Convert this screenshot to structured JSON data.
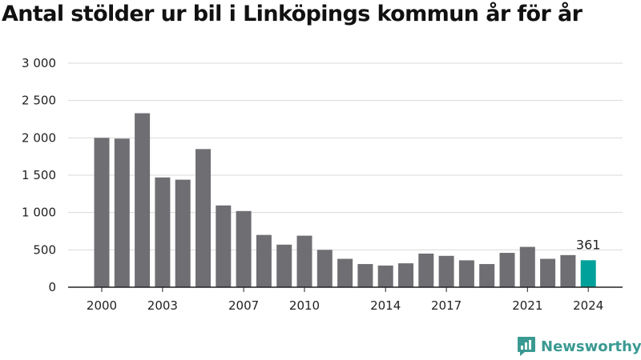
{
  "title": "Antal stölder ur bil i Linköpings kommun år för år",
  "brand": {
    "name": "Newsworthy",
    "icon": "newsworthy-logo-icon",
    "color": "#3a9a92"
  },
  "colors": {
    "bar": "#6f6e73",
    "highlight": "#00a19a",
    "grid": "#d9d9d9",
    "axis": "#222222"
  },
  "chart_data": {
    "type": "bar",
    "title": "Antal stölder ur bil i Linköpings kommun år för år",
    "xlabel": "",
    "ylabel": "",
    "categories": [
      2000,
      2001,
      2002,
      2003,
      2004,
      2005,
      2006,
      2007,
      2008,
      2009,
      2010,
      2011,
      2012,
      2013,
      2014,
      2015,
      2016,
      2017,
      2018,
      2019,
      2020,
      2021,
      2022,
      2023,
      2024
    ],
    "values": [
      2000,
      1990,
      2330,
      1470,
      1440,
      1850,
      1095,
      1020,
      700,
      570,
      690,
      500,
      380,
      310,
      290,
      320,
      450,
      420,
      360,
      310,
      460,
      540,
      380,
      430,
      361
    ],
    "highlight_index": 24,
    "x_tick_labels": [
      "2000",
      "2003",
      "2007",
      "2010",
      "2014",
      "2017",
      "2021",
      "2024"
    ],
    "y_ticks": [
      0,
      500,
      1000,
      1500,
      2000,
      2500,
      3000
    ],
    "y_tick_labels": [
      "0",
      "500",
      "1 000",
      "1 500",
      "2 000",
      "2 500",
      "3 000"
    ],
    "ylim": [
      0,
      3000
    ],
    "grid": true,
    "data_labels": [
      {
        "index": 24,
        "text": "361"
      }
    ]
  }
}
